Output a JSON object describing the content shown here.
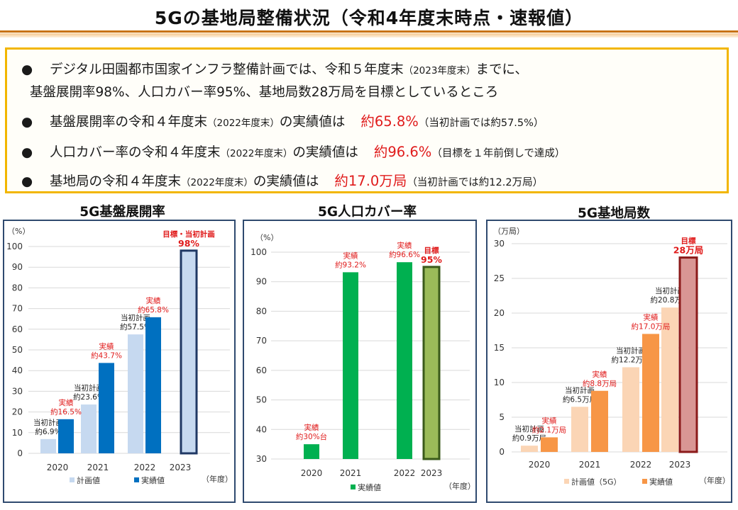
{
  "title": "5Gの基地局整備状況（令和4年度末時点・速報値）",
  "summary": {
    "bullet": "●",
    "line1": {
      "main": "デジタル田園都市国家インフラ整備計画では、令和５年度末",
      "sub": "（2023年度末）",
      "tail": "までに、"
    },
    "line2": "基盤展開率98%、人口カバー率95%、基地局数28万局を目標としているところ",
    "line3": {
      "pre": "基盤展開率の令和４年度末",
      "sub": "（2022年度末）",
      "mid": "の実績値は",
      "value": "約65.8%",
      "note": "（当初計画では約57.5%）"
    },
    "line4": {
      "pre": "人口カバー率の令和４年度末",
      "sub": "（2022年度末）",
      "mid": "の実績値は",
      "value": "約96.6%",
      "note": "（目標を１年前倒しで達成）"
    },
    "line5": {
      "pre": "基地局の令和４年度末",
      "sub": "（2022年度末）",
      "mid": "の実績値は",
      "value": "約17.0万局",
      "note": "（当初計画では約12.2万局）"
    }
  },
  "colors": {
    "plan_blue": "#c6d9f0",
    "actual_blue": "#0070c0",
    "actual_green": "#00b050",
    "target_green": "#9bbb59",
    "plan_peach": "#fbd5b5",
    "actual_orange": "#f79646",
    "target_rose": "#d99694",
    "label_red": "#e01b1b",
    "frame_navy": "#2f4a6f"
  },
  "chart_data": [
    {
      "type": "bar",
      "title": "5G基盤展開率",
      "unit_label": "（%）",
      "xlabel": "（年度）",
      "categories": [
        "2020",
        "2021",
        "2022",
        "2023"
      ],
      "ylim": [
        0,
        100
      ],
      "yticks": [
        0,
        10,
        20,
        30,
        40,
        50,
        60,
        70,
        80,
        90,
        100
      ],
      "grid": true,
      "legend_position": "bottom",
      "series": [
        {
          "name": "計画値",
          "color": "#c6d9f0",
          "values": [
            6.9,
            23.6,
            57.5,
            null
          ],
          "labels": [
            [
              "当初計画",
              "約6.9%"
            ],
            [
              "当初計画",
              "約23.6%"
            ],
            [
              "当初計画",
              "約57.5%"
            ],
            null
          ],
          "label_color": "#222"
        },
        {
          "name": "実績値",
          "color": "#0070c0",
          "values": [
            16.5,
            43.7,
            65.8,
            null
          ],
          "labels": [
            [
              "実績",
              "約16.5%"
            ],
            [
              "実績",
              "約43.7%"
            ],
            [
              "実績",
              "約65.8%"
            ],
            null
          ],
          "label_color": "#e01b1b"
        }
      ],
      "target": {
        "category": "2023",
        "value": 98,
        "color": "#c6d9f0",
        "border": "#1f3864",
        "labels": [
          "目標・当初計画",
          "98%"
        ]
      }
    },
    {
      "type": "bar",
      "title": "5G人口カバー率",
      "unit_label": "（%）",
      "xlabel": "（年度）",
      "categories": [
        "2020",
        "2021",
        "2022",
        "2023"
      ],
      "ylim": [
        30,
        100
      ],
      "yticks": [
        30,
        40,
        50,
        60,
        70,
        80,
        90,
        100
      ],
      "grid": true,
      "legend_position": "bottom",
      "series": [
        {
          "name": "実績値",
          "color": "#00b050",
          "values": [
            35,
            93.2,
            96.6,
            null
          ],
          "labels": [
            [
              "実績",
              "約30%台"
            ],
            [
              "実績",
              "約93.2%"
            ],
            [
              "実績",
              "約96.6%"
            ],
            null
          ],
          "label_color": "#e01b1b"
        }
      ],
      "target": {
        "category": "2023",
        "value": 95,
        "color": "#9bbb59",
        "border": "#3a5a1a",
        "labels": [
          "目標",
          "95%"
        ]
      }
    },
    {
      "type": "bar",
      "title": "5G基地局数",
      "unit_label": "（万局）",
      "xlabel": "（年度）",
      "categories": [
        "2020",
        "2021",
        "2022",
        "2023"
      ],
      "ylim": [
        0,
        30
      ],
      "yticks": [
        0,
        5,
        10,
        15,
        20,
        25,
        30
      ],
      "grid": true,
      "legend_position": "bottom",
      "series": [
        {
          "name": "計画値（5G）",
          "color": "#fbd5b5",
          "values": [
            0.9,
            6.5,
            12.2,
            20.8
          ],
          "labels": [
            [
              "当初計画",
              "約0.9万局"
            ],
            [
              "当初計画",
              "約6.5万局"
            ],
            [
              "当初計画",
              "約12.2万局"
            ],
            [
              "当初計画",
              "約20.8万局"
            ]
          ],
          "label_color": "#222"
        },
        {
          "name": "実績値",
          "color": "#f79646",
          "values": [
            2.1,
            8.8,
            17.0,
            null
          ],
          "labels": [
            [
              "実績",
              "約2.1万局"
            ],
            [
              "実績",
              "約8.8万局"
            ],
            [
              "実績",
              "約17.0万局"
            ],
            null
          ],
          "label_color": "#e01b1b"
        }
      ],
      "target": {
        "category": "2023",
        "value": 28,
        "color": "#d99694",
        "border": "#8b1a1a",
        "labels": [
          "目標",
          "28万局"
        ]
      }
    }
  ]
}
